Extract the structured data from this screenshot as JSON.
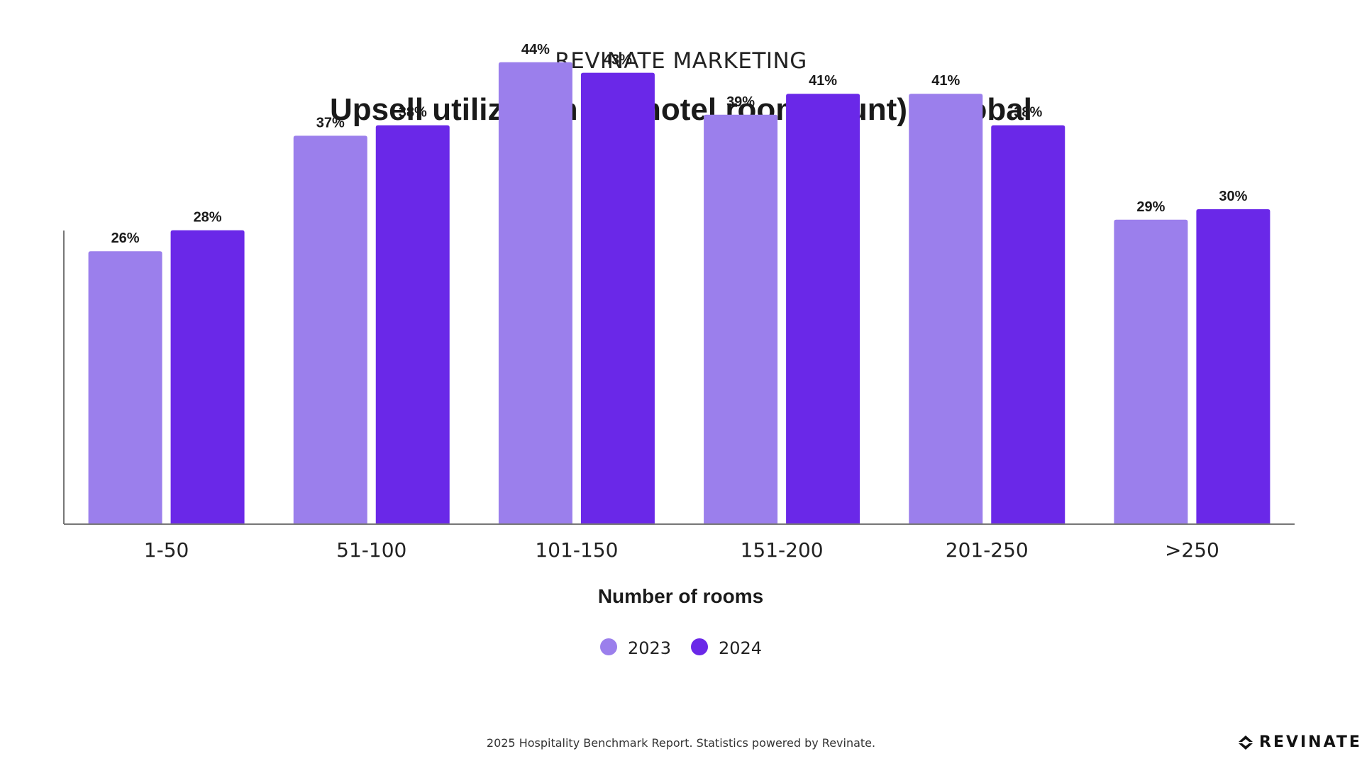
{
  "header": {
    "brand": "REVINATE MARKETING"
  },
  "chart_data": {
    "type": "bar",
    "title": "Upsell utilization (by hotel room count) - Global",
    "xlabel": "Number of rooms",
    "ylabel": "",
    "categories": [
      "1-50",
      "51-100",
      "101-150",
      "151-200",
      "201-250",
      ">250"
    ],
    "series": [
      {
        "name": "2023",
        "color": "#9b7fec",
        "values": [
          26,
          37,
          44,
          39,
          41,
          29
        ]
      },
      {
        "name": "2024",
        "color": "#6a28e8",
        "values": [
          28,
          38,
          43,
          41,
          38,
          30
        ]
      }
    ],
    "value_suffix": "%",
    "ylim": [
      0,
      50
    ],
    "grid": false,
    "legend": "bottom-center"
  },
  "footer": {
    "note": "2025 Hospitality Benchmark Report. Statistics powered by Revinate.",
    "logo_text": "REVINATE",
    "logo_icon": "revinate-logo-icon"
  }
}
